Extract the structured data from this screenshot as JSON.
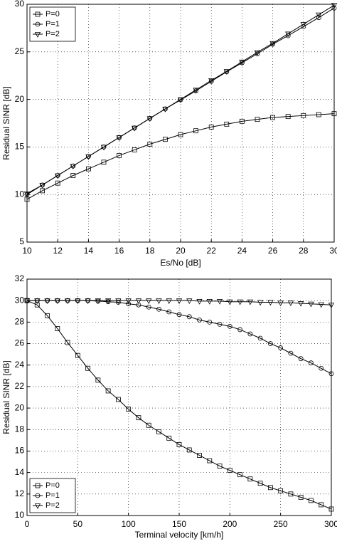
{
  "chart_data": [
    {
      "type": "line",
      "xlabel": "Es/No [dB]",
      "ylabel": "Residual SINR [dB]",
      "x": [
        10,
        11,
        12,
        13,
        14,
        15,
        16,
        17,
        18,
        19,
        20,
        21,
        22,
        23,
        24,
        25,
        26,
        27,
        28,
        29,
        30
      ],
      "series": [
        {
          "name": "P=0",
          "color": "#000000",
          "marker": "square",
          "values": [
            9.5,
            10.4,
            11.2,
            12.0,
            12.7,
            13.4,
            14.1,
            14.7,
            15.3,
            15.8,
            16.3,
            16.7,
            17.1,
            17.4,
            17.7,
            17.9,
            18.1,
            18.2,
            18.3,
            18.4,
            18.5
          ]
        },
        {
          "name": "P=1",
          "color": "#000000",
          "marker": "circle",
          "values": [
            10,
            11,
            12,
            13,
            14,
            15,
            16,
            17,
            18,
            19,
            19.95,
            20.9,
            21.9,
            22.9,
            23.85,
            24.8,
            25.8,
            26.7,
            27.65,
            28.6,
            29.6
          ]
        },
        {
          "name": "P=2",
          "color": "#000000",
          "marker": "triangle-down",
          "values": [
            10.1,
            11,
            12,
            13,
            14,
            15,
            16,
            17,
            18,
            19,
            20,
            21,
            22,
            22.95,
            23.95,
            24.95,
            25.9,
            26.9,
            27.9,
            28.9,
            29.9
          ]
        }
      ],
      "xlim": [
        10,
        30
      ],
      "xticks": [
        10,
        12,
        14,
        16,
        18,
        20,
        22,
        24,
        26,
        28,
        30
      ],
      "ylim": [
        5,
        30
      ],
      "yticks": [
        5,
        10,
        15,
        20,
        25,
        30
      ],
      "grid": true,
      "legend": "upper left"
    },
    {
      "type": "line",
      "xlabel": "Terminal velocity [km/h]",
      "ylabel": "Residual SINR [dB]",
      "x": [
        0,
        10,
        20,
        30,
        40,
        50,
        60,
        70,
        80,
        90,
        100,
        110,
        120,
        130,
        140,
        150,
        160,
        170,
        180,
        190,
        200,
        210,
        220,
        230,
        240,
        250,
        260,
        270,
        280,
        290,
        300
      ],
      "series": [
        {
          "name": "P=0",
          "color": "#000000",
          "marker": "square",
          "values": [
            30,
            29.6,
            28.6,
            27.4,
            26.1,
            24.9,
            23.7,
            22.6,
            21.6,
            20.8,
            19.9,
            19.1,
            18.4,
            17.8,
            17.2,
            16.6,
            16.1,
            15.6,
            15.1,
            14.6,
            14.2,
            13.8,
            13.4,
            13.0,
            12.6,
            12.3,
            12.0,
            11.7,
            11.4,
            11.0,
            10.6
          ]
        },
        {
          "name": "P=1",
          "color": "#000000",
          "marker": "circle",
          "values": [
            30,
            30,
            30,
            30,
            30,
            30,
            30,
            29.95,
            29.9,
            29.85,
            29.7,
            29.6,
            29.4,
            29.2,
            28.95,
            28.7,
            28.5,
            28.2,
            28.0,
            27.8,
            27.6,
            27.3,
            26.9,
            26.5,
            26.0,
            25.6,
            25.1,
            24.6,
            24.2,
            23.7,
            23.2
          ]
        },
        {
          "name": "P=2",
          "color": "#000000",
          "marker": "triangle-down",
          "values": [
            30,
            30,
            30,
            30,
            30,
            30,
            30,
            30,
            30,
            30,
            30,
            30,
            30,
            30,
            30,
            30,
            30,
            29.95,
            29.95,
            29.95,
            29.9,
            29.9,
            29.9,
            29.85,
            29.85,
            29.8,
            29.8,
            29.75,
            29.7,
            29.65,
            29.6
          ]
        }
      ],
      "xlim": [
        0,
        300
      ],
      "xticks": [
        0,
        50,
        100,
        150,
        200,
        250,
        300
      ],
      "ylim": [
        10,
        32
      ],
      "yticks": [
        10,
        12,
        14,
        16,
        18,
        20,
        22,
        24,
        26,
        28,
        30,
        32
      ],
      "grid": true,
      "legend": "lower left"
    }
  ]
}
